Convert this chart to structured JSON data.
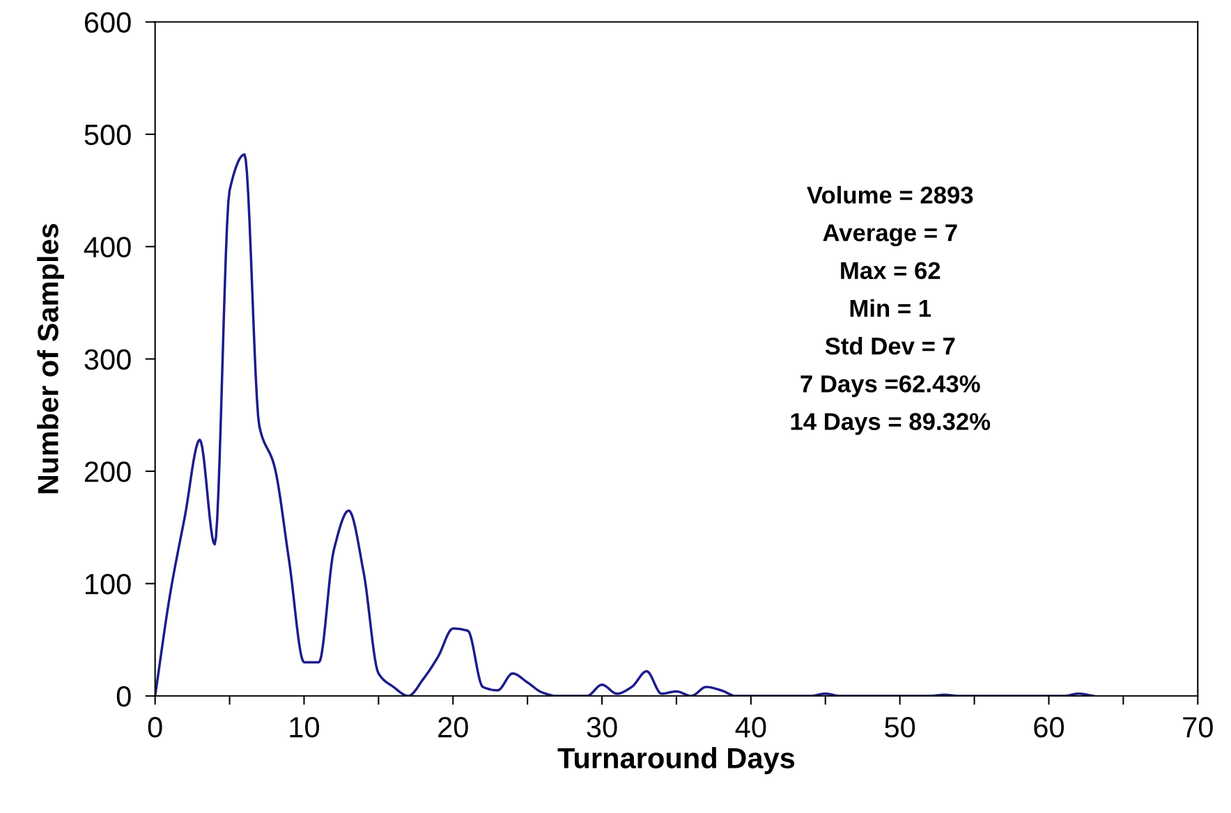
{
  "chart_data": {
    "type": "line",
    "xlabel": "Turnaround Days",
    "ylabel": "Number of Samples",
    "annotations": [
      "Volume = 2893",
      "Average = 7",
      "Max = 62",
      "Min = 1",
      "Std Dev = 7",
      "7 Days =62.43%",
      "14 Days = 89.32%"
    ],
    "series": [
      {
        "color": "#1c1c8c",
        "x": [
          0,
          1,
          2,
          3,
          4,
          5,
          6,
          7,
          8,
          9,
          10,
          11,
          12,
          13,
          14,
          15,
          16,
          17,
          18,
          19,
          20,
          21,
          22,
          23,
          24,
          25,
          26,
          27,
          28,
          29,
          30,
          31,
          32,
          33,
          34,
          35,
          36,
          37,
          38,
          39,
          40,
          44,
          45,
          46,
          52,
          53,
          54,
          61,
          62,
          63
        ],
        "values": [
          0,
          90,
          160,
          228,
          135,
          450,
          482,
          240,
          205,
          120,
          30,
          30,
          130,
          165,
          110,
          20,
          8,
          0,
          15,
          35,
          60,
          58,
          8,
          5,
          20,
          12,
          3,
          0,
          0,
          0,
          10,
          2,
          8,
          22,
          2,
          4,
          0,
          8,
          5,
          0,
          0,
          0,
          2,
          0,
          0,
          1,
          0,
          0,
          2,
          0
        ]
      }
    ],
    "xlim": [
      0,
      70
    ],
    "ylim": [
      0,
      600
    ],
    "xticks": [
      0,
      {
        "value": 5,
        "label": null
      },
      10,
      {
        "value": 15,
        "label": null
      },
      20,
      {
        "value": 25,
        "label": null
      },
      30,
      {
        "value": 35,
        "label": null
      },
      40,
      {
        "value": 45,
        "label": null
      },
      50,
      {
        "value": 55,
        "label": null
      },
      60,
      {
        "value": 65,
        "label": null
      },
      70
    ],
    "yticks": [
      0,
      100,
      200,
      300,
      400,
      500,
      600
    ],
    "grid": false,
    "legend": false,
    "marker": "none",
    "line_style": "solid"
  }
}
